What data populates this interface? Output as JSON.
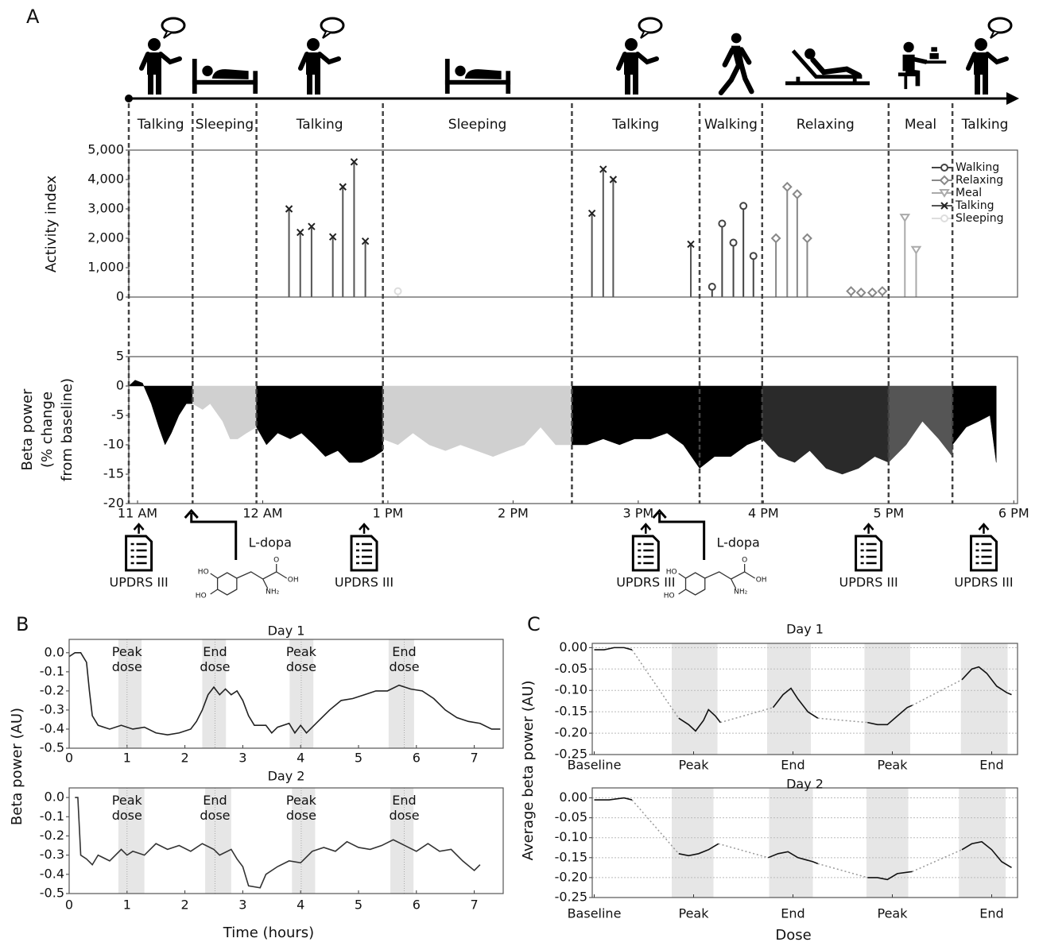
{
  "panel_labels": [
    "A",
    "B",
    "C"
  ],
  "timeline": {
    "segments": [
      {
        "label": "Talking",
        "start": 10.93,
        "end": 11.44
      },
      {
        "label": "Sleeping",
        "start": 11.44,
        "end": 11.95
      },
      {
        "label": "Talking",
        "start": 11.95,
        "end": 12.96
      },
      {
        "label": "Sleeping",
        "start": 12.96,
        "end": 14.47
      },
      {
        "label": "Talking",
        "start": 14.47,
        "end": 15.49
      },
      {
        "label": "Walking",
        "start": 15.49,
        "end": 15.99
      },
      {
        "label": "Relaxing",
        "start": 15.99,
        "end": 17.0
      },
      {
        "label": "Meal",
        "start": 17.0,
        "end": 17.51
      },
      {
        "label": "Talking",
        "start": 17.51,
        "end": 18.03
      }
    ],
    "assessments": [
      {
        "label": "UPDRS III",
        "time": 11.01
      },
      {
        "label": "UPDRS III",
        "time": 12.81
      },
      {
        "label": "UPDRS III",
        "time": 15.06
      },
      {
        "label": "UPDRS III",
        "time": 16.84
      },
      {
        "label": "UPDRS III",
        "time": 17.76
      }
    ],
    "medication": [
      {
        "label": "L-dopa",
        "time": 11.43,
        "atoms": [
          "HO",
          "HO",
          "O",
          "OH",
          "NH₂"
        ]
      },
      {
        "label": "L-dopa",
        "time": 15.17,
        "atoms": [
          "HO",
          "HO",
          "O",
          "OH",
          "NH₂"
        ]
      }
    ]
  },
  "chart_data": [
    {
      "type": "stem",
      "ylabel": "Activity index",
      "xlim": [
        10.93,
        18.03
      ],
      "ylim": [
        0,
        5000
      ],
      "yticks": [
        0,
        {
          "value": 1000,
          "label": "1,000"
        },
        {
          "value": 2000,
          "label": "2,000"
        },
        {
          "value": 3000,
          "label": "3,000"
        },
        {
          "value": 4000,
          "label": "4,000"
        },
        {
          "value": 5000,
          "label": "5,000"
        }
      ],
      "legend": "upper right",
      "series": [
        {
          "name": "Walking",
          "color": "#444444",
          "marker": "o",
          "x": [
            15.59,
            15.67,
            15.76,
            15.84,
            15.92
          ],
          "values": [
            350,
            2500,
            1850,
            3100,
            1400
          ]
        },
        {
          "name": "Relaxing",
          "color": "#888888",
          "marker": "D",
          "x": [
            16.1,
            16.19,
            16.27,
            16.35,
            16.7,
            16.78,
            16.87,
            16.95
          ],
          "values": [
            2000,
            3750,
            3500,
            2000,
            200,
            150,
            150,
            200
          ]
        },
        {
          "name": "Meal",
          "color": "#aaaaaa",
          "marker": "v",
          "x": [
            17.13,
            17.22
          ],
          "values": [
            2700,
            1600
          ]
        },
        {
          "name": "Talking",
          "color": "#555555",
          "marker": "x",
          "x": [
            12.21,
            12.3,
            12.39,
            12.56,
            12.64,
            12.73,
            12.82,
            14.63,
            14.72,
            14.8,
            15.42
          ],
          "values": [
            3000,
            2200,
            2400,
            2050,
            3750,
            4600,
            1900,
            2850,
            4350,
            4000,
            1800
          ]
        },
        {
          "name": "Sleeping",
          "color": "#dddddd",
          "marker": "o",
          "x": [
            13.08
          ],
          "values": [
            200
          ]
        }
      ]
    },
    {
      "type": "area",
      "ylabel": [
        "Beta power",
        "(% change",
        "from baseline)"
      ],
      "xlim": [
        10.93,
        18.03
      ],
      "ylim": [
        -20,
        5
      ],
      "yticks": [
        -20,
        -15,
        -10,
        -5,
        0,
        5
      ],
      "xticks": [
        {
          "value": 11,
          "label": "11 AM"
        },
        {
          "value": 12,
          "label": "12 AM"
        },
        {
          "value": 13,
          "label": "1 PM"
        },
        {
          "value": 14,
          "label": "2 PM"
        },
        {
          "value": 15,
          "label": "3 PM"
        },
        {
          "value": 16,
          "label": "4 PM"
        },
        {
          "value": 17,
          "label": "5 PM"
        },
        {
          "value": 18,
          "label": "6 PM"
        }
      ],
      "series": [
        {
          "color": "#000000",
          "x": [
            10.93,
            10.98,
            11.04,
            11.11,
            11.17,
            11.22,
            11.27,
            11.33,
            11.39,
            11.44
          ],
          "values": [
            0,
            1,
            0.5,
            -3,
            -7,
            -10,
            -8,
            -5,
            -3,
            -3
          ]
        },
        {
          "color": "#d0d0d0",
          "x": [
            11.44,
            11.52,
            11.58,
            11.68,
            11.74,
            11.8,
            11.87,
            11.95
          ],
          "values": [
            -3,
            -4,
            -3,
            -6,
            -9,
            -9,
            -8,
            -7
          ]
        },
        {
          "color": "#000000",
          "x": [
            11.95,
            12.03,
            12.12,
            12.22,
            12.31,
            12.41,
            12.5,
            12.6,
            12.69,
            12.79,
            12.89,
            12.96
          ],
          "values": [
            -7,
            -10,
            -8,
            -9,
            -8,
            -10,
            -12,
            -11,
            -13,
            -13,
            -12,
            -11
          ]
        },
        {
          "color": "#d0d0d0",
          "x": [
            12.96,
            13.08,
            13.2,
            13.33,
            13.46,
            13.58,
            13.71,
            13.84,
            13.96,
            14.09,
            14.22,
            14.34,
            14.47
          ],
          "values": [
            -9,
            -10,
            -8,
            -10,
            -11,
            -10,
            -11,
            -12,
            -11,
            -10,
            -7,
            -10,
            -10
          ]
        },
        {
          "color": "#000000",
          "x": [
            14.47,
            14.59,
            14.72,
            14.85,
            14.97,
            15.1,
            15.23,
            15.36,
            15.49
          ],
          "values": [
            -10,
            -10,
            -9,
            -10,
            -9,
            -9,
            -8,
            -10,
            -14
          ]
        },
        {
          "color": "#000000",
          "x": [
            15.49,
            15.61,
            15.74,
            15.87,
            15.99
          ],
          "values": [
            -14,
            -12,
            -12,
            -10,
            -9
          ]
        },
        {
          "color": "#2a2a2a",
          "x": [
            15.99,
            16.12,
            16.25,
            16.37,
            16.5,
            16.63,
            16.76,
            16.89,
            17.0
          ],
          "values": [
            -9,
            -12,
            -13,
            -11,
            -14,
            -15,
            -14,
            -12,
            -13
          ]
        },
        {
          "color": "#555555",
          "x": [
            17.0,
            17.14,
            17.27,
            17.4,
            17.51
          ],
          "values": [
            -13,
            -10,
            -6,
            -9,
            -12
          ]
        },
        {
          "color": "#000000",
          "x": [
            17.51,
            17.62,
            17.72,
            17.81,
            17.86
          ],
          "values": [
            -10,
            -7,
            -6,
            -5,
            -13
          ]
        }
      ]
    },
    {
      "type": "line",
      "title": "Day 1",
      "ylabel": "Beta power (AU)",
      "xlim": [
        0,
        7.5
      ],
      "ylim": [
        -0.5,
        0.07
      ],
      "yticks": [
        -0.5,
        -0.4,
        -0.3,
        -0.2,
        -0.1,
        {
          "value": 0,
          "label": "0.0"
        }
      ],
      "xticks": [
        0,
        1,
        2,
        3,
        4,
        5,
        6,
        7
      ],
      "spans": [
        [
          0.85,
          1.25
        ],
        [
          2.3,
          2.71
        ],
        [
          3.81,
          4.22
        ],
        [
          5.52,
          5.96
        ]
      ],
      "annotations": [
        {
          "text": "Peak dose",
          "x": 1.0
        },
        {
          "text": "End dose",
          "x": 2.52
        },
        {
          "text": "Peak dose",
          "x": 4.01
        },
        {
          "text": "End dose",
          "x": 5.79
        }
      ],
      "series": [
        {
          "color": "#222222",
          "x": [
            0,
            0.1,
            0.2,
            0.3,
            0.35,
            0.4,
            0.5,
            0.7,
            0.9,
            1.1,
            1.3,
            1.5,
            1.7,
            1.9,
            2.1,
            2.2,
            2.3,
            2.4,
            2.5,
            2.6,
            2.7,
            2.8,
            2.9,
            3.0,
            3.1,
            3.2,
            3.4,
            3.5,
            3.6,
            3.8,
            3.9,
            4.0,
            4.1,
            4.3,
            4.5,
            4.7,
            4.9,
            5.1,
            5.3,
            5.5,
            5.7,
            5.9,
            6.1,
            6.3,
            6.5,
            6.7,
            6.9,
            7.1,
            7.3,
            7.45
          ],
          "values": [
            -0.02,
            0,
            0,
            -0.05,
            -0.2,
            -0.33,
            -0.38,
            -0.4,
            -0.38,
            -0.4,
            -0.39,
            -0.42,
            -0.43,
            -0.42,
            -0.4,
            -0.36,
            -0.3,
            -0.22,
            -0.18,
            -0.22,
            -0.19,
            -0.22,
            -0.2,
            -0.25,
            -0.33,
            -0.38,
            -0.38,
            -0.42,
            -0.39,
            -0.37,
            -0.42,
            -0.38,
            -0.42,
            -0.36,
            -0.3,
            -0.25,
            -0.24,
            -0.22,
            -0.2,
            -0.2,
            -0.17,
            -0.19,
            -0.2,
            -0.24,
            -0.3,
            -0.34,
            -0.36,
            -0.37,
            -0.4,
            -0.4
          ]
        }
      ]
    },
    {
      "type": "line",
      "title": "Day 2",
      "xlabel": "Time (hours)",
      "xlim": [
        0,
        7.5
      ],
      "ylim": [
        -0.5,
        0.05
      ],
      "yticks": [
        -0.5,
        -0.4,
        -0.3,
        -0.2,
        -0.1,
        {
          "value": 0,
          "label": "0.0"
        }
      ],
      "xticks": [
        0,
        1,
        2,
        3,
        4,
        5,
        6,
        7
      ],
      "spans": [
        [
          0.85,
          1.3
        ],
        [
          2.35,
          2.8
        ],
        [
          3.85,
          4.25
        ],
        [
          5.55,
          5.95
        ]
      ],
      "annotations": [
        {
          "text": "Peak dose",
          "x": 1.0
        },
        {
          "text": "End dose",
          "x": 2.52
        },
        {
          "text": "Peak dose",
          "x": 4.01
        },
        {
          "text": "End dose",
          "x": 5.79
        }
      ],
      "series": [
        {
          "color": "#333333",
          "x": [
            0.1,
            0.15,
            0.2,
            0.3,
            0.4,
            0.5,
            0.7,
            0.9,
            1.0,
            1.1,
            1.3,
            1.5,
            1.7,
            1.9,
            2.1,
            2.3,
            2.5,
            2.6,
            2.8,
            2.9,
            3.0,
            3.1,
            3.3,
            3.4,
            3.6,
            3.8,
            4.0,
            4.2,
            4.4,
            4.6,
            4.8,
            5.0,
            5.2,
            5.4,
            5.6,
            5.8,
            6.0,
            6.2,
            6.4,
            6.6,
            6.8,
            7.0,
            7.1
          ],
          "values": [
            0,
            0,
            -0.3,
            -0.32,
            -0.35,
            -0.3,
            -0.33,
            -0.27,
            -0.3,
            -0.28,
            -0.3,
            -0.24,
            -0.27,
            -0.25,
            -0.28,
            -0.24,
            -0.27,
            -0.3,
            -0.27,
            -0.32,
            -0.36,
            -0.46,
            -0.47,
            -0.4,
            -0.36,
            -0.33,
            -0.34,
            -0.28,
            -0.26,
            -0.28,
            -0.23,
            -0.26,
            -0.27,
            -0.25,
            -0.22,
            -0.25,
            -0.28,
            -0.24,
            -0.28,
            -0.27,
            -0.33,
            -0.38,
            -0.35
          ]
        }
      ]
    },
    {
      "type": "line",
      "title": "Day 1",
      "ylabel": "Average beta power (AU)",
      "xlim": [
        -0.02,
        4.26
      ],
      "ylim": [
        -0.25,
        0.01
      ],
      "grid": true,
      "connect": "dotted",
      "yticks": [
        -0.25,
        {
          "value": -0.2,
          "label": "-0.20"
        },
        -0.15,
        {
          "value": -0.1,
          "label": "-0.10"
        },
        -0.05,
        {
          "value": 0,
          "label": "0.00"
        }
      ],
      "xticks": [
        {
          "value": 0,
          "label": "Baseline"
        },
        {
          "value": 1,
          "label": "Peak"
        },
        {
          "value": 2,
          "label": "End"
        },
        {
          "value": 3,
          "label": "Peak"
        },
        {
          "value": 4,
          "label": "End"
        }
      ],
      "spans": [
        [
          0.78,
          1.24
        ],
        [
          1.74,
          2.18
        ],
        [
          2.72,
          3.18
        ],
        [
          3.69,
          4.16
        ]
      ],
      "series": [
        {
          "color": "#111111",
          "x": [
            0,
            0.1,
            0.2,
            0.3,
            0.38,
            null,
            0.85,
            0.95,
            1.02,
            1.1,
            1.15,
            1.22,
            1.27,
            null,
            1.8,
            1.9,
            1.98,
            2.05,
            2.15,
            2.25,
            null,
            2.75,
            2.85,
            2.95,
            3.05,
            3.15,
            3.2,
            null,
            3.7,
            3.8,
            3.87,
            3.95,
            4.05,
            4.15,
            4.2
          ],
          "values": [
            -0.005,
            -0.005,
            0,
            0,
            -0.005,
            null,
            -0.165,
            -0.18,
            -0.195,
            -0.17,
            -0.145,
            -0.16,
            -0.175,
            null,
            -0.14,
            -0.11,
            -0.095,
            -0.12,
            -0.15,
            -0.165,
            null,
            -0.175,
            -0.18,
            -0.18,
            -0.16,
            -0.14,
            -0.135,
            null,
            -0.075,
            -0.05,
            -0.045,
            -0.06,
            -0.09,
            -0.105,
            -0.11
          ]
        }
      ]
    },
    {
      "type": "line",
      "title": "Day 2",
      "xlabel": "Dose",
      "xlim": [
        -0.02,
        4.26
      ],
      "ylim": [
        -0.25,
        0.025
      ],
      "grid": true,
      "connect": "dotted",
      "yticks": [
        -0.25,
        {
          "value": -0.2,
          "label": "-0.20"
        },
        -0.15,
        {
          "value": -0.1,
          "label": "-0.10"
        },
        -0.05,
        {
          "value": 0,
          "label": "0.00"
        }
      ],
      "xticks": [
        {
          "value": 0,
          "label": "Baseline"
        },
        {
          "value": 1,
          "label": "Peak"
        },
        {
          "value": 2,
          "label": "End"
        },
        {
          "value": 3,
          "label": "Peak"
        },
        {
          "value": 4,
          "label": "End"
        }
      ],
      "spans": [
        [
          0.78,
          1.2
        ],
        [
          1.76,
          2.2
        ],
        [
          2.74,
          3.16
        ],
        [
          3.67,
          4.14
        ]
      ],
      "series": [
        {
          "color": "#111111",
          "x": [
            0,
            0.15,
            0.3,
            0.38,
            null,
            0.85,
            0.95,
            1.05,
            1.15,
            1.25,
            null,
            1.75,
            1.85,
            1.95,
            2.05,
            2.2,
            2.25,
            null,
            2.75,
            2.85,
            2.95,
            3.05,
            3.2,
            null,
            3.7,
            3.8,
            3.9,
            4.0,
            4.1,
            4.2
          ],
          "values": [
            -0.005,
            -0.005,
            0,
            -0.005,
            null,
            -0.14,
            -0.145,
            -0.14,
            -0.13,
            -0.115,
            null,
            -0.15,
            -0.14,
            -0.135,
            -0.15,
            -0.16,
            -0.165,
            null,
            -0.2,
            -0.2,
            -0.205,
            -0.19,
            -0.185,
            null,
            -0.13,
            -0.115,
            -0.11,
            -0.13,
            -0.16,
            -0.175
          ]
        }
      ]
    }
  ]
}
